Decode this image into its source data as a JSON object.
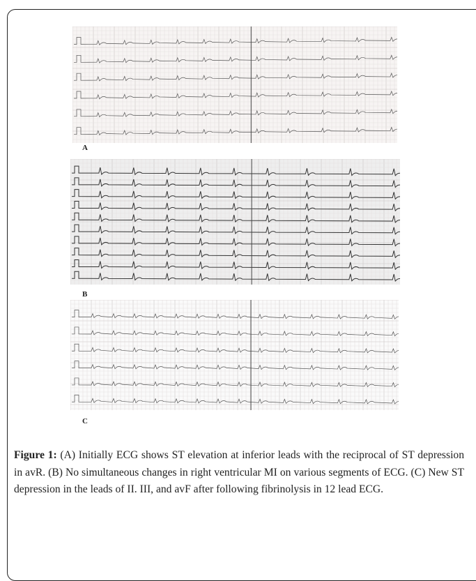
{
  "figure": {
    "panels": [
      {
        "label": "A"
      },
      {
        "label": "B"
      },
      {
        "label": "C"
      }
    ],
    "caption": {
      "label": "Figure 1:",
      "text": "(A) Initially ECG shows ST elevation at inferior leads with the reciprocal of ST depression in avR. (B) No simultaneous changes in right ventricular MI on various segments of ECG. (C) New ST depression in the leads of II. III, and avF after following fibrinolysis in 12 lead ECG."
    }
  }
}
